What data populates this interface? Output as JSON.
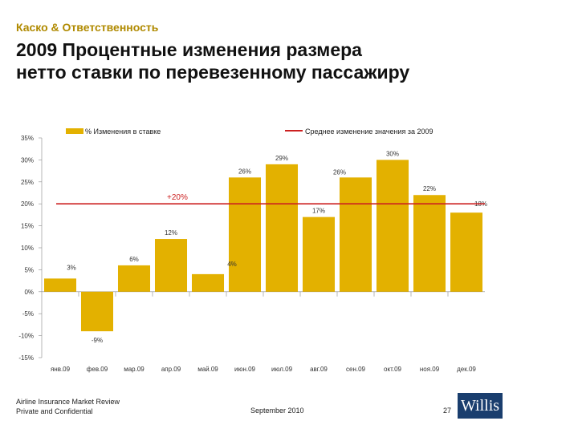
{
  "header": {
    "subtitle": "Каско & Ответственность",
    "title_line1": "2009 Процентные изменения размера",
    "title_line2": "нетто ставки по перевезенному пассажиру"
  },
  "chart_data": {
    "type": "bar",
    "categories": [
      "янв.09",
      "фев.09",
      "мар.09",
      "апр.09",
      "май.09",
      "июн.09",
      "июл.09",
      "авг.09",
      "сен.09",
      "окт.09",
      "ноя.09",
      "дек.09"
    ],
    "values": [
      3,
      -9,
      6,
      12,
      4,
      26,
      29,
      17,
      26,
      30,
      22,
      18
    ],
    "value_labels": [
      "3%",
      "-9%",
      "6%",
      "12%",
      "4%",
      "26%",
      "29%",
      "17%",
      "26%",
      "30%",
      "22%",
      "18%"
    ],
    "ylim": [
      -15,
      35
    ],
    "yticks": [
      35,
      30,
      25,
      20,
      15,
      10,
      5,
      0,
      -5,
      -10,
      -15
    ],
    "ytick_labels": [
      "35%",
      "30%",
      "25%",
      "20%",
      "15%",
      "10%",
      "5%",
      "0%",
      "-5%",
      "-10%",
      "-15%"
    ],
    "series_name": "% Изменения в ставке",
    "average_name": "Среднее изменение значения за 2009",
    "average_value": 20,
    "average_label": "+20%",
    "bar_color": "#e3b100",
    "average_color": "#cc2020"
  },
  "footer": {
    "line1": "Airline Insurance Market Review",
    "line2": "Private and Confidential",
    "date": "September 2010",
    "page": "27",
    "logo": "Willis"
  }
}
